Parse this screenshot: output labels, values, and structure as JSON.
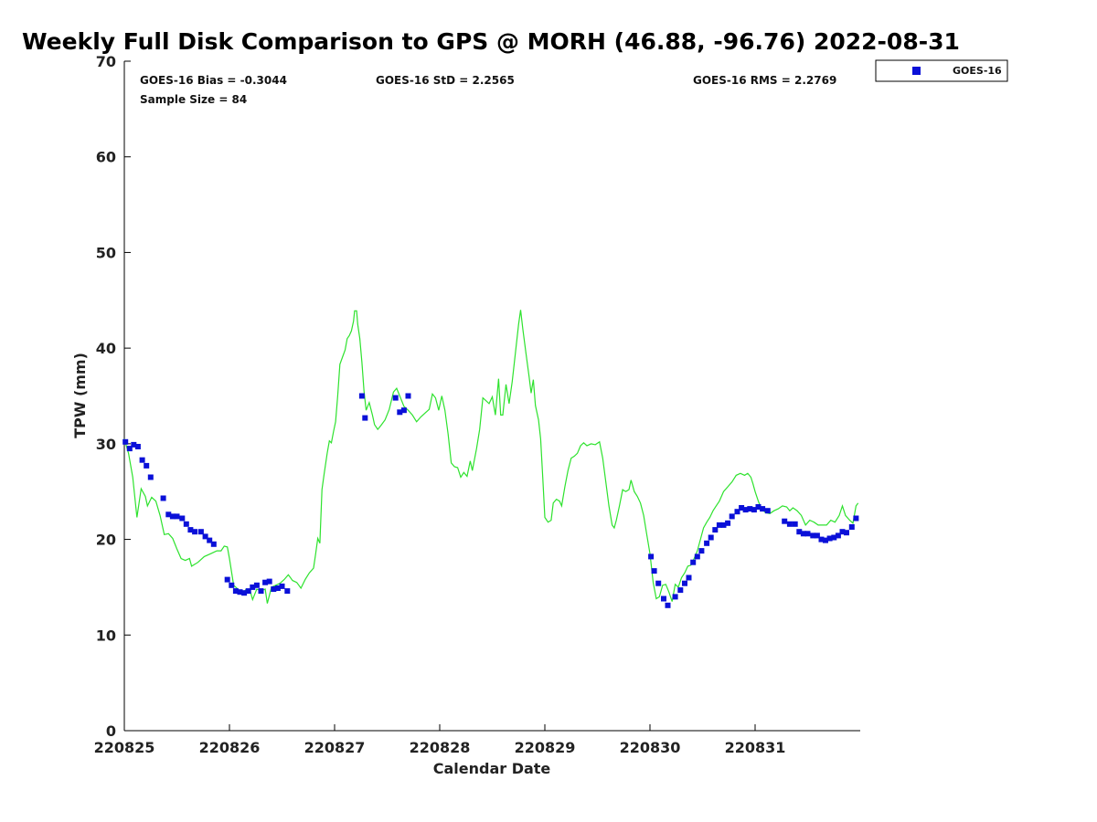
{
  "chart_data": {
    "type": "scatter",
    "title": "Weekly Full Disk Comparison to GPS @ MORH (46.88, -96.76) 2022-08-31",
    "xlabel": "Calendar Date",
    "ylabel": "TPW (mm)",
    "xlim": [
      0,
      7
    ],
    "ylim": [
      0,
      70
    ],
    "x_unit": "days from 220825",
    "x_ticks": [
      {
        "x": 0,
        "label": "220825"
      },
      {
        "x": 1,
        "label": "220826"
      },
      {
        "x": 2,
        "label": "220827"
      },
      {
        "x": 3,
        "label": "220828"
      },
      {
        "x": 4,
        "label": "220829"
      },
      {
        "x": 5,
        "label": "220830"
      },
      {
        "x": 6,
        "label": "220831"
      }
    ],
    "y_ticks": [
      0,
      10,
      20,
      30,
      40,
      50,
      60,
      70
    ],
    "grid": false,
    "legend": {
      "position": "top-right",
      "entries": [
        "GOES-16"
      ]
    },
    "stats": {
      "bias": "GOES-16 Bias = -0.3044",
      "std": "GOES-16 StD = 2.2565",
      "rms": "GOES-16 RMS = 2.2769",
      "sample": "Sample Size = 84"
    },
    "series": [
      {
        "name": "GOES-16",
        "type": "scatter",
        "color": "#0a10d8",
        "marker": "square",
        "points": [
          [
            0.01,
            30.2
          ],
          [
            0.05,
            29.5
          ],
          [
            0.09,
            29.9
          ],
          [
            0.13,
            29.7
          ],
          [
            0.17,
            28.3
          ],
          [
            0.21,
            27.7
          ],
          [
            0.25,
            26.5
          ],
          [
            0.37,
            24.3
          ],
          [
            0.42,
            22.6
          ],
          [
            0.46,
            22.4
          ],
          [
            0.5,
            22.4
          ],
          [
            0.55,
            22.2
          ],
          [
            0.59,
            21.6
          ],
          [
            0.63,
            21.0
          ],
          [
            0.67,
            20.8
          ],
          [
            0.73,
            20.8
          ],
          [
            0.77,
            20.3
          ],
          [
            0.81,
            19.9
          ],
          [
            0.85,
            19.5
          ],
          [
            0.98,
            15.8
          ],
          [
            1.02,
            15.2
          ],
          [
            1.06,
            14.6
          ],
          [
            1.1,
            14.5
          ],
          [
            1.14,
            14.4
          ],
          [
            1.18,
            14.6
          ],
          [
            1.22,
            15.0
          ],
          [
            1.26,
            15.2
          ],
          [
            1.3,
            14.6
          ],
          [
            1.34,
            15.5
          ],
          [
            1.38,
            15.6
          ],
          [
            1.42,
            14.8
          ],
          [
            1.46,
            14.9
          ],
          [
            1.5,
            15.1
          ],
          [
            1.55,
            14.6
          ],
          [
            2.26,
            35.0
          ],
          [
            2.29,
            32.7
          ],
          [
            2.58,
            34.8
          ],
          [
            2.62,
            33.3
          ],
          [
            2.66,
            33.5
          ],
          [
            2.7,
            35.0
          ],
          [
            5.01,
            18.2
          ],
          [
            5.04,
            16.7
          ],
          [
            5.08,
            15.4
          ],
          [
            5.13,
            13.8
          ],
          [
            5.17,
            13.1
          ],
          [
            5.24,
            14.0
          ],
          [
            5.29,
            14.7
          ],
          [
            5.33,
            15.4
          ],
          [
            5.37,
            16.0
          ],
          [
            5.41,
            17.6
          ],
          [
            5.45,
            18.2
          ],
          [
            5.49,
            18.8
          ],
          [
            5.54,
            19.6
          ],
          [
            5.58,
            20.2
          ],
          [
            5.62,
            21.0
          ],
          [
            5.66,
            21.5
          ],
          [
            5.7,
            21.5
          ],
          [
            5.74,
            21.7
          ],
          [
            5.78,
            22.4
          ],
          [
            5.83,
            22.9
          ],
          [
            5.87,
            23.3
          ],
          [
            5.91,
            23.1
          ],
          [
            5.95,
            23.2
          ],
          [
            5.99,
            23.1
          ],
          [
            6.03,
            23.4
          ],
          [
            6.07,
            23.2
          ],
          [
            6.12,
            23.0
          ],
          [
            6.28,
            21.9
          ],
          [
            6.33,
            21.6
          ],
          [
            6.38,
            21.6
          ],
          [
            6.42,
            20.8
          ],
          [
            6.46,
            20.6
          ],
          [
            6.5,
            20.6
          ],
          [
            6.55,
            20.4
          ],
          [
            6.59,
            20.4
          ],
          [
            6.63,
            20.0
          ],
          [
            6.67,
            19.9
          ],
          [
            6.71,
            20.1
          ],
          [
            6.75,
            20.2
          ],
          [
            6.79,
            20.4
          ],
          [
            6.83,
            20.8
          ],
          [
            6.87,
            20.7
          ],
          [
            6.92,
            21.3
          ],
          [
            6.96,
            22.2
          ]
        ]
      },
      {
        "name": "",
        "type": "line",
        "color": "#2ee22e",
        "points": [
          [
            0.0,
            30.5
          ],
          [
            0.04,
            29.0
          ],
          [
            0.08,
            26.5
          ],
          [
            0.12,
            22.3
          ],
          [
            0.16,
            25.3
          ],
          [
            0.2,
            24.5
          ],
          [
            0.22,
            23.5
          ],
          [
            0.26,
            24.4
          ],
          [
            0.3,
            24.0
          ],
          [
            0.34,
            22.5
          ],
          [
            0.38,
            20.5
          ],
          [
            0.42,
            20.6
          ],
          [
            0.46,
            20.1
          ],
          [
            0.5,
            19.0
          ],
          [
            0.54,
            18.0
          ],
          [
            0.58,
            17.8
          ],
          [
            0.62,
            18.0
          ],
          [
            0.64,
            17.2
          ],
          [
            0.7,
            17.6
          ],
          [
            0.76,
            18.2
          ],
          [
            0.82,
            18.5
          ],
          [
            0.88,
            18.8
          ],
          [
            0.92,
            18.8
          ],
          [
            0.95,
            19.3
          ],
          [
            0.98,
            19.2
          ],
          [
            1.0,
            18.0
          ],
          [
            1.04,
            15.2
          ],
          [
            1.08,
            14.8
          ],
          [
            1.12,
            14.3
          ],
          [
            1.16,
            14.8
          ],
          [
            1.2,
            14.5
          ],
          [
            1.22,
            13.7
          ],
          [
            1.26,
            14.8
          ],
          [
            1.3,
            14.6
          ],
          [
            1.34,
            14.8
          ],
          [
            1.36,
            13.3
          ],
          [
            1.4,
            15.0
          ],
          [
            1.44,
            15.2
          ],
          [
            1.48,
            15.4
          ],
          [
            1.52,
            15.8
          ],
          [
            1.56,
            16.3
          ],
          [
            1.6,
            15.7
          ],
          [
            1.64,
            15.5
          ],
          [
            1.68,
            14.9
          ],
          [
            1.72,
            15.8
          ],
          [
            1.76,
            16.5
          ],
          [
            1.8,
            17.0
          ],
          [
            1.82,
            18.5
          ],
          [
            1.84,
            20.1
          ],
          [
            1.86,
            19.6
          ],
          [
            1.88,
            25.2
          ],
          [
            1.9,
            26.8
          ],
          [
            1.93,
            29.0
          ],
          [
            1.95,
            30.3
          ],
          [
            1.97,
            30.1
          ],
          [
            1.99,
            31.3
          ],
          [
            2.01,
            32.3
          ],
          [
            2.03,
            35.0
          ],
          [
            2.05,
            38.3
          ],
          [
            2.08,
            39.2
          ],
          [
            2.1,
            39.8
          ],
          [
            2.12,
            41.0
          ],
          [
            2.14,
            41.3
          ],
          [
            2.16,
            41.8
          ],
          [
            2.18,
            42.8
          ],
          [
            2.19,
            43.9
          ],
          [
            2.21,
            43.9
          ],
          [
            2.22,
            42.5
          ],
          [
            2.24,
            41.0
          ],
          [
            2.26,
            38.5
          ],
          [
            2.28,
            35.5
          ],
          [
            2.3,
            33.5
          ],
          [
            2.33,
            34.3
          ],
          [
            2.36,
            33.0
          ],
          [
            2.38,
            32.0
          ],
          [
            2.41,
            31.5
          ],
          [
            2.44,
            31.9
          ],
          [
            2.48,
            32.5
          ],
          [
            2.52,
            33.6
          ],
          [
            2.56,
            35.4
          ],
          [
            2.59,
            35.8
          ],
          [
            2.62,
            35.0
          ],
          [
            2.66,
            33.9
          ],
          [
            2.7,
            33.5
          ],
          [
            2.74,
            33.0
          ],
          [
            2.78,
            32.3
          ],
          [
            2.82,
            32.8
          ],
          [
            2.86,
            33.2
          ],
          [
            2.9,
            33.6
          ],
          [
            2.93,
            35.2
          ],
          [
            2.96,
            34.8
          ],
          [
            2.99,
            33.5
          ],
          [
            3.02,
            35.0
          ],
          [
            3.05,
            33.5
          ],
          [
            3.08,
            31.0
          ],
          [
            3.11,
            28.0
          ],
          [
            3.14,
            27.6
          ],
          [
            3.17,
            27.5
          ],
          [
            3.2,
            26.5
          ],
          [
            3.23,
            27.0
          ],
          [
            3.26,
            26.6
          ],
          [
            3.29,
            28.2
          ],
          [
            3.31,
            27.2
          ],
          [
            3.35,
            29.5
          ],
          [
            3.38,
            31.5
          ],
          [
            3.41,
            34.8
          ],
          [
            3.44,
            34.5
          ],
          [
            3.47,
            34.2
          ],
          [
            3.5,
            34.9
          ],
          [
            3.53,
            33.0
          ],
          [
            3.56,
            36.8
          ],
          [
            3.58,
            33.0
          ],
          [
            3.6,
            33.0
          ],
          [
            3.63,
            36.2
          ],
          [
            3.66,
            34.2
          ],
          [
            3.69,
            36.5
          ],
          [
            3.72,
            39.5
          ],
          [
            3.75,
            42.5
          ],
          [
            3.77,
            44.0
          ],
          [
            3.79,
            42.0
          ],
          [
            3.82,
            39.5
          ],
          [
            3.85,
            37.0
          ],
          [
            3.87,
            35.3
          ],
          [
            3.89,
            36.7
          ],
          [
            3.91,
            34.0
          ],
          [
            3.94,
            32.5
          ],
          [
            3.96,
            30.5
          ],
          [
            3.98,
            26.5
          ],
          [
            4.0,
            22.3
          ],
          [
            4.03,
            21.8
          ],
          [
            4.06,
            22.0
          ],
          [
            4.08,
            23.8
          ],
          [
            4.11,
            24.2
          ],
          [
            4.14,
            24.0
          ],
          [
            4.16,
            23.5
          ],
          [
            4.19,
            25.5
          ],
          [
            4.22,
            27.2
          ],
          [
            4.25,
            28.5
          ],
          [
            4.28,
            28.7
          ],
          [
            4.31,
            29.0
          ],
          [
            4.34,
            29.8
          ],
          [
            4.37,
            30.1
          ],
          [
            4.4,
            29.8
          ],
          [
            4.44,
            30.0
          ],
          [
            4.48,
            29.9
          ],
          [
            4.52,
            30.2
          ],
          [
            4.55,
            28.5
          ],
          [
            4.58,
            26.0
          ],
          [
            4.61,
            23.5
          ],
          [
            4.64,
            21.5
          ],
          [
            4.66,
            21.2
          ],
          [
            4.68,
            22.0
          ],
          [
            4.71,
            23.5
          ],
          [
            4.74,
            25.2
          ],
          [
            4.77,
            25.0
          ],
          [
            4.8,
            25.2
          ],
          [
            4.82,
            26.2
          ],
          [
            4.85,
            25.0
          ],
          [
            4.88,
            24.5
          ],
          [
            4.91,
            23.8
          ],
          [
            4.94,
            22.5
          ],
          [
            4.97,
            20.5
          ],
          [
            5.0,
            18.5
          ],
          [
            5.03,
            15.5
          ],
          [
            5.06,
            13.8
          ],
          [
            5.09,
            14.0
          ],
          [
            5.12,
            15.2
          ],
          [
            5.15,
            15.3
          ],
          [
            5.18,
            14.5
          ],
          [
            5.21,
            13.5
          ],
          [
            5.24,
            15.3
          ],
          [
            5.27,
            15.0
          ],
          [
            5.3,
            16.0
          ],
          [
            5.33,
            16.5
          ],
          [
            5.36,
            17.2
          ],
          [
            5.39,
            17.3
          ],
          [
            5.42,
            18.0
          ],
          [
            5.45,
            18.8
          ],
          [
            5.48,
            20.0
          ],
          [
            5.51,
            21.2
          ],
          [
            5.54,
            21.8
          ],
          [
            5.57,
            22.3
          ],
          [
            5.6,
            23.0
          ],
          [
            5.63,
            23.5
          ],
          [
            5.66,
            24.0
          ],
          [
            5.7,
            25.0
          ],
          [
            5.74,
            25.5
          ],
          [
            5.78,
            26.0
          ],
          [
            5.82,
            26.7
          ],
          [
            5.86,
            26.9
          ],
          [
            5.9,
            26.7
          ],
          [
            5.93,
            26.9
          ],
          [
            5.96,
            26.5
          ],
          [
            5.98,
            25.8
          ],
          [
            6.0,
            25.0
          ],
          [
            6.03,
            24.0
          ],
          [
            6.06,
            23.2
          ],
          [
            6.1,
            22.8
          ],
          [
            6.14,
            22.7
          ],
          [
            6.18,
            23.0
          ],
          [
            6.22,
            23.2
          ],
          [
            6.26,
            23.5
          ],
          [
            6.3,
            23.4
          ],
          [
            6.33,
            23.0
          ],
          [
            6.36,
            23.3
          ],
          [
            6.4,
            23.0
          ],
          [
            6.44,
            22.5
          ],
          [
            6.48,
            21.5
          ],
          [
            6.52,
            22.0
          ],
          [
            6.56,
            21.8
          ],
          [
            6.6,
            21.5
          ],
          [
            6.64,
            21.5
          ],
          [
            6.68,
            21.5
          ],
          [
            6.72,
            22.0
          ],
          [
            6.76,
            21.8
          ],
          [
            6.8,
            22.5
          ],
          [
            6.83,
            23.5
          ],
          [
            6.86,
            22.5
          ],
          [
            6.9,
            22.0
          ],
          [
            6.93,
            21.7
          ],
          [
            6.96,
            23.5
          ],
          [
            6.98,
            23.8
          ]
        ]
      }
    ]
  }
}
